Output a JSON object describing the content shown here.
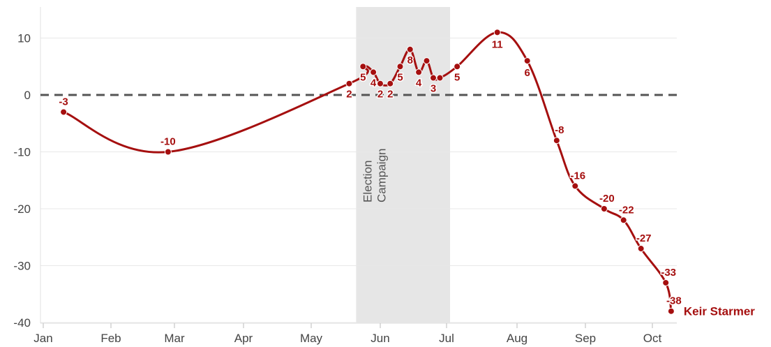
{
  "chart_data": {
    "type": "line",
    "title": "",
    "xlabel": "",
    "ylabel": "",
    "ylim": [
      -40,
      15
    ],
    "yticks": [
      10,
      0,
      -10,
      -20,
      -30,
      -40
    ],
    "xticks": [
      "Jan",
      "Feb",
      "Mar",
      "Apr",
      "May",
      "Jun",
      "Jul",
      "Aug",
      "Sep",
      "Oct"
    ],
    "xlim_month": [
      1,
      10.4
    ],
    "grid": true,
    "zero_line": "dashed",
    "band": {
      "label_line1": "Election",
      "label_line2": "Campaign",
      "start_month": 5.65,
      "end_month": 7.05,
      "color": "#e6e6e6"
    },
    "series": [
      {
        "name": "Keir Starmer",
        "color": "#a50f0f",
        "points": [
          {
            "x": 1.3,
            "y": -3,
            "label": "-3"
          },
          {
            "x": 2.9,
            "y": -10,
            "label": "-10"
          },
          {
            "x": 5.55,
            "y": 2,
            "label": "2"
          },
          {
            "x": 5.75,
            "y": 5,
            "label": "5"
          },
          {
            "x": 5.9,
            "y": 4,
            "label": "4"
          },
          {
            "x": 6.0,
            "y": 2,
            "label": "2"
          },
          {
            "x": 6.15,
            "y": 2,
            "label": "2"
          },
          {
            "x": 6.3,
            "y": 5,
            "label": "5"
          },
          {
            "x": 6.45,
            "y": 8,
            "label": "8"
          },
          {
            "x": 6.58,
            "y": 4,
            "label": "4"
          },
          {
            "x": 6.7,
            "y": 6,
            "label": ""
          },
          {
            "x": 6.8,
            "y": 3,
            "label": "3"
          },
          {
            "x": 6.9,
            "y": 3,
            "label": ""
          },
          {
            "x": 7.15,
            "y": 5,
            "label": "5"
          },
          {
            "x": 7.72,
            "y": 11,
            "label": "11"
          },
          {
            "x": 8.15,
            "y": 6,
            "label": "6"
          },
          {
            "x": 8.58,
            "y": -8,
            "label": "-8"
          },
          {
            "x": 8.85,
            "y": -16,
            "label": "-16"
          },
          {
            "x": 9.28,
            "y": -20,
            "label": "-20"
          },
          {
            "x": 9.57,
            "y": -22,
            "label": "-22"
          },
          {
            "x": 9.83,
            "y": -27,
            "label": "-27"
          },
          {
            "x": 10.2,
            "y": -33,
            "label": "-33"
          },
          {
            "x": 10.28,
            "y": -38,
            "label": "-38"
          }
        ]
      }
    ]
  }
}
